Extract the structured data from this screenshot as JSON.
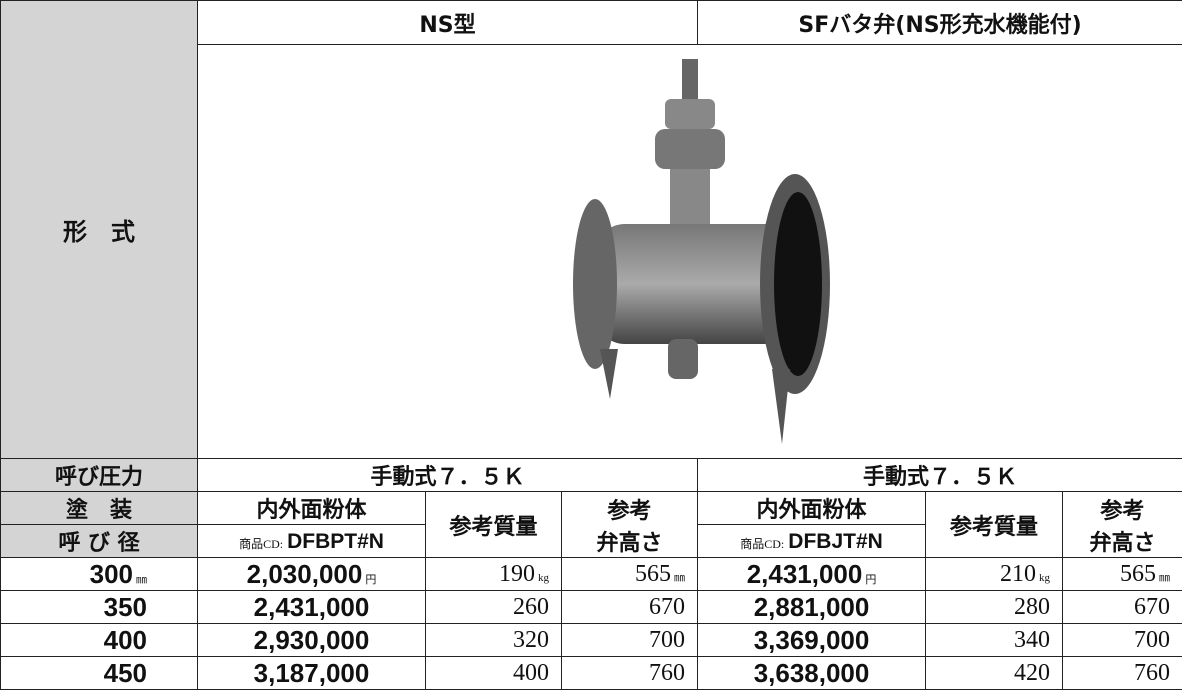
{
  "table": {
    "type_label": "形　式",
    "ns_title": "NS型",
    "sf_title": "SFバタ弁(NS形充水機能付)",
    "pressure_label": "呼び圧力",
    "ns_pressure": "手動式７．５Ｋ",
    "sf_pressure": "手動式７．５Ｋ",
    "coating_label": "塗　装",
    "diameter_label": "呼 び 径",
    "coating": "内外面粉体",
    "weight_head": "参考質量",
    "height_head": [
      "参考",
      "弁高さ"
    ],
    "code_prefix": "商品CD:",
    "ns_code": "DFBPT#N",
    "sf_code": "DFBJT#N",
    "units": {
      "diameter": "㎜",
      "price": "円",
      "weight": "kg",
      "height": "㎜"
    },
    "rows": [
      [
        "300",
        "2,030,000",
        "190",
        "565",
        "2,431,000",
        "210",
        "565"
      ],
      [
        "350",
        "2,431,000",
        "260",
        "670",
        "2,881,000",
        "280",
        "670"
      ],
      [
        "400",
        "2,930,000",
        "320",
        "700",
        "3,369,000",
        "340",
        "700"
      ],
      [
        "450",
        "3,187,000",
        "400",
        "760",
        "3,638,000",
        "420",
        "760"
      ]
    ]
  }
}
